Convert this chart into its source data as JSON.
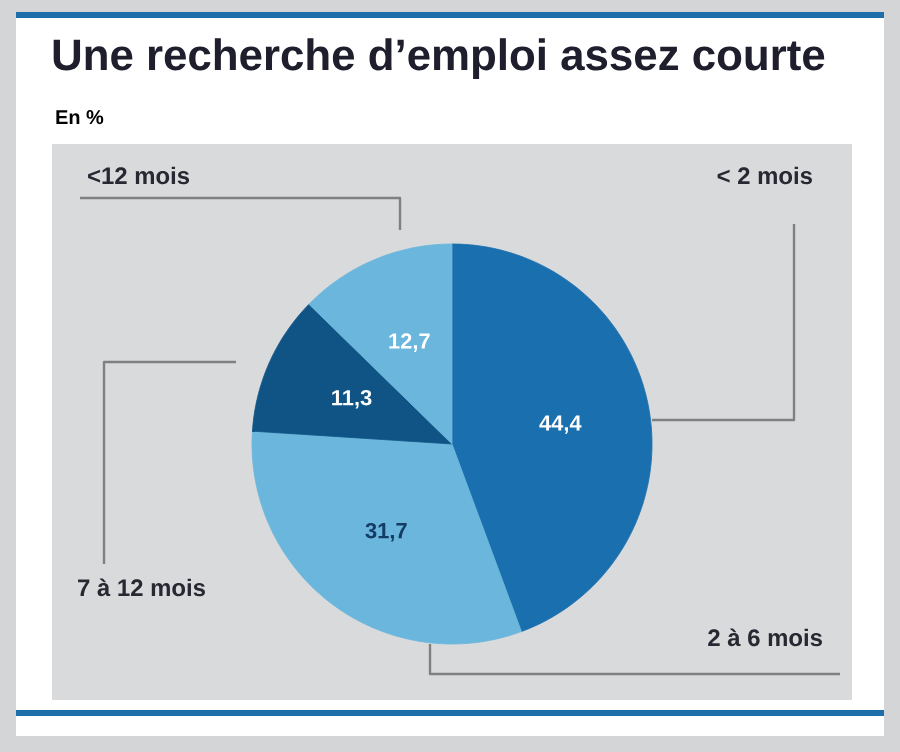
{
  "chart_data": {
    "type": "pie",
    "title": "Une recherche d’emploi assez courte",
    "subtitle": "En %",
    "categories": [
      "< 2 mois",
      "2 à 6 mois",
      "7 à 12 mois",
      "<12 mois"
    ],
    "values": [
      44.4,
      31.7,
      11.3,
      12.7
    ],
    "value_labels": [
      "44,4",
      "31,7",
      "11,3",
      "12,7"
    ],
    "colors": [
      "#1a6fae",
      "#6ab6dc",
      "#0f5485",
      "#6ab6dc"
    ],
    "legend": false
  }
}
